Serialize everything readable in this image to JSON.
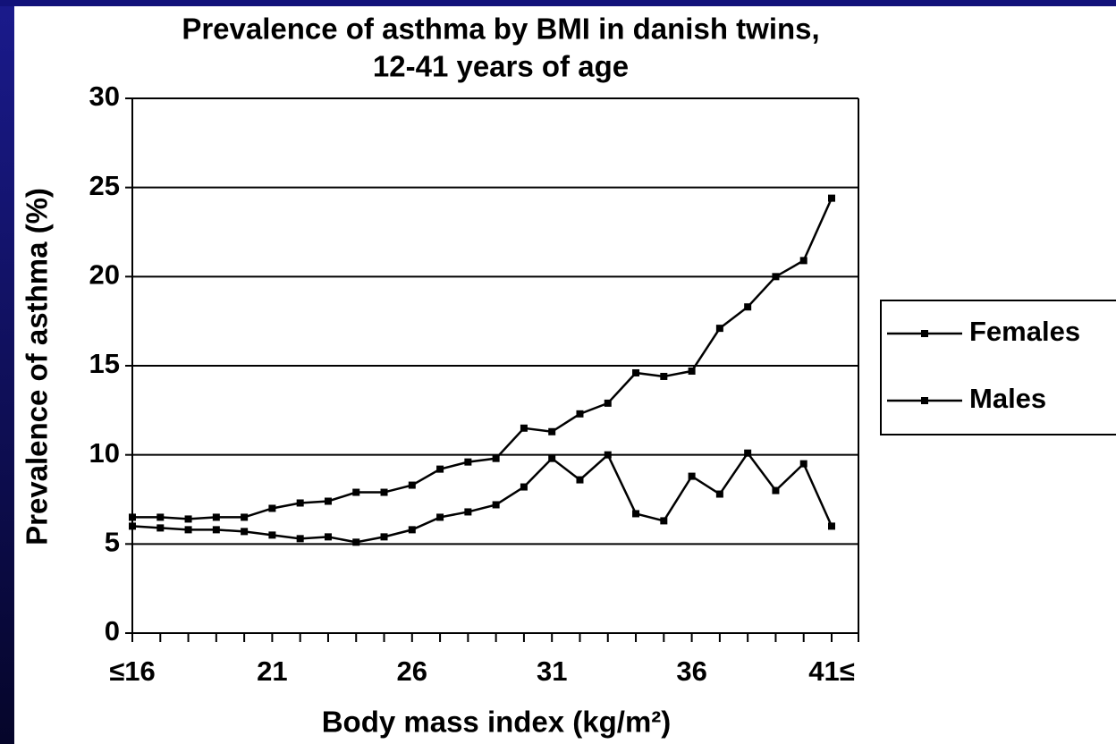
{
  "chart_data": {
    "type": "line",
    "title": [
      "Prevalence of asthma by BMI in danish twins,",
      "12-41 years of age"
    ],
    "x_label": "Body mass index (kg/m²)",
    "y_label": "Prevalence of asthma (%)",
    "categories": [
      "≤16",
      null,
      null,
      null,
      null,
      "21",
      null,
      null,
      null,
      null,
      "26",
      null,
      null,
      null,
      null,
      "31",
      null,
      null,
      null,
      null,
      "36",
      null,
      null,
      null,
      null,
      "41≤"
    ],
    "series": [
      {
        "name": "Females",
        "color": "#000000",
        "values": [
          6.5,
          6.5,
          6.4,
          6.5,
          6.5,
          7.0,
          7.3,
          7.4,
          7.9,
          7.9,
          8.3,
          9.2,
          9.6,
          9.8,
          11.5,
          11.3,
          12.3,
          12.9,
          14.6,
          14.4,
          14.7,
          17.1,
          18.3,
          20.0,
          20.9,
          24.4
        ]
      },
      {
        "name": "Males",
        "color": "#000000",
        "values": [
          6.0,
          5.9,
          5.8,
          5.8,
          5.7,
          5.5,
          5.3,
          5.4,
          5.1,
          5.4,
          5.8,
          6.5,
          6.8,
          7.2,
          8.2,
          9.8,
          8.6,
          10.0,
          6.7,
          6.3,
          8.8,
          7.8,
          10.1,
          8.0,
          9.5,
          6.0
        ]
      }
    ],
    "ylim": [
      0,
      30
    ],
    "yticks": [
      0,
      5,
      10,
      15,
      20,
      25,
      30
    ],
    "grid": true,
    "legend": "right"
  }
}
